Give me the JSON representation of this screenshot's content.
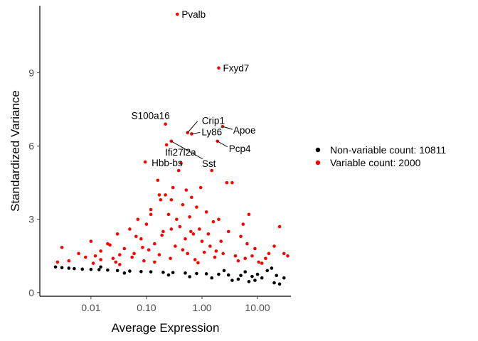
{
  "chart_data": {
    "type": "scatter",
    "xlabel": "Average Expression",
    "ylabel": "Standardized Variance",
    "x_scale": "log10",
    "xlim": [
      0.0012,
      40
    ],
    "ylim": [
      -0.15,
      11.75
    ],
    "x_ticks": [
      0.01,
      0.1,
      1,
      10
    ],
    "x_tick_labels": [
      "0.01",
      "0.10",
      "1.00",
      "10.00"
    ],
    "y_ticks": [
      0,
      3,
      6,
      9
    ],
    "y_tick_labels": [
      "0",
      "3",
      "6",
      "9"
    ],
    "grid": false,
    "legend_position": "right",
    "series": [
      {
        "name": "Non-variable count: 10811",
        "color": "#000000",
        "points": [
          [
            0.0023,
            1.05
          ],
          [
            0.003,
            1.02
          ],
          [
            0.004,
            1.0
          ],
          [
            0.005,
            0.98
          ],
          [
            0.007,
            0.96
          ],
          [
            0.01,
            0.95
          ],
          [
            0.014,
            0.94
          ],
          [
            0.02,
            0.92
          ],
          [
            0.03,
            0.9
          ],
          [
            0.05,
            0.88
          ],
          [
            0.08,
            0.86
          ],
          [
            0.12,
            0.85
          ],
          [
            0.2,
            0.83
          ],
          [
            0.3,
            0.82
          ],
          [
            0.5,
            0.8
          ],
          [
            0.8,
            0.78
          ],
          [
            1.2,
            0.77
          ],
          [
            2.0,
            0.75
          ],
          [
            3.0,
            0.72
          ],
          [
            5.0,
            0.7
          ],
          [
            8.0,
            0.66
          ],
          [
            12.0,
            0.6
          ],
          [
            15.0,
            0.9
          ],
          [
            18.0,
            1.0
          ],
          [
            20.0,
            0.4
          ],
          [
            25.0,
            0.35
          ],
          [
            30.0,
            0.6
          ],
          [
            3.5,
            0.5
          ],
          [
            4.5,
            0.55
          ],
          [
            7.0,
            0.45
          ],
          [
            1.5,
            0.6
          ],
          [
            0.6,
            0.65
          ],
          [
            10.0,
            0.75
          ],
          [
            2.5,
            0.9
          ],
          [
            0.25,
            0.72
          ],
          [
            0.04,
            0.8
          ],
          [
            0.015,
            1.05
          ],
          [
            6.0,
            0.85
          ],
          [
            9.0,
            0.5
          ],
          [
            22.0,
            0.7
          ]
        ]
      },
      {
        "name": "Variable count: 2000",
        "color": "#ff0000",
        "points": [
          [
            0.0025,
            1.25
          ],
          [
            0.003,
            1.85
          ],
          [
            0.004,
            1.3
          ],
          [
            0.006,
            1.6
          ],
          [
            0.008,
            1.45
          ],
          [
            0.01,
            2.1
          ],
          [
            0.012,
            1.5
          ],
          [
            0.015,
            1.7
          ],
          [
            0.02,
            2.0
          ],
          [
            0.025,
            1.4
          ],
          [
            0.03,
            2.4
          ],
          [
            0.04,
            1.8
          ],
          [
            0.05,
            2.6
          ],
          [
            0.06,
            1.6
          ],
          [
            0.07,
            3.0
          ],
          [
            0.08,
            2.2
          ],
          [
            0.1,
            2.8
          ],
          [
            0.12,
            3.4
          ],
          [
            0.14,
            2.0
          ],
          [
            0.16,
            4.6
          ],
          [
            0.18,
            3.8
          ],
          [
            0.2,
            2.5
          ],
          [
            0.22,
            4.0
          ],
          [
            0.25,
            3.2
          ],
          [
            0.28,
            2.6
          ],
          [
            0.3,
            4.3
          ],
          [
            0.35,
            3.0
          ],
          [
            0.4,
            2.7
          ],
          [
            0.45,
            3.6
          ],
          [
            0.5,
            2.2
          ],
          [
            0.6,
            3.1
          ],
          [
            0.7,
            2.4
          ],
          [
            0.8,
            3.5
          ],
          [
            0.9,
            2.6
          ],
          [
            1.0,
            2.1
          ],
          [
            1.2,
            3.3
          ],
          [
            1.4,
            1.9
          ],
          [
            1.6,
            2.9
          ],
          [
            1.8,
            1.7
          ],
          [
            2.0,
            3.0
          ],
          [
            2.4,
            1.6
          ],
          [
            3.0,
            2.5
          ],
          [
            3.5,
            4.5
          ],
          [
            4.0,
            1.5
          ],
          [
            5.0,
            2.3
          ],
          [
            6.0,
            1.4
          ],
          [
            7.0,
            3.2
          ],
          [
            9.0,
            1.8
          ],
          [
            12.0,
            1.2
          ],
          [
            14.0,
            1.4
          ],
          [
            16.0,
            1.6
          ],
          [
            20.0,
            1.9
          ],
          [
            25.0,
            2.7
          ],
          [
            30.0,
            1.6
          ],
          [
            35.0,
            1.5
          ],
          [
            0.011,
            1.2
          ],
          [
            0.033,
            1.15
          ],
          [
            0.09,
            1.3
          ],
          [
            0.27,
            1.4
          ],
          [
            0.75,
            1.35
          ],
          [
            0.033,
            1.55
          ],
          [
            0.11,
            1.75
          ],
          [
            0.33,
            1.9
          ],
          [
            1.1,
            1.65
          ],
          [
            0.015,
            1.35
          ],
          [
            0.055,
            1.45
          ],
          [
            0.17,
            1.55
          ],
          [
            0.55,
            1.6
          ],
          [
            1.7,
            1.45
          ],
          [
            2.2,
            2.1
          ],
          [
            0.022,
            1.95
          ],
          [
            0.065,
            2.3
          ],
          [
            0.19,
            2.35
          ],
          [
            0.63,
            2.5
          ],
          [
            0.085,
            1.85
          ],
          [
            0.45,
            1.75
          ],
          [
            1.3,
            2.4
          ],
          [
            0.028,
            1.25
          ],
          [
            0.14,
            1.25
          ],
          [
            0.85,
            1.22
          ],
          [
            4.5,
            1.3
          ],
          [
            8.0,
            1.5
          ],
          [
            10.5,
            1.25
          ],
          [
            6.5,
            2.0
          ],
          [
            0.38,
            5.0
          ],
          [
            0.95,
            4.3
          ],
          [
            0.17,
            4.0
          ],
          [
            0.52,
            4.2
          ],
          [
            0.42,
            5.3
          ],
          [
            1.5,
            5.0
          ],
          [
            0.28,
            3.8
          ],
          [
            0.65,
            3.9
          ],
          [
            0.12,
            3.2
          ],
          [
            2.8,
            4.5
          ],
          [
            5.5,
            2.8
          ]
        ]
      }
    ],
    "labeled_genes": [
      {
        "name": "Pvalb",
        "x": 0.36,
        "y": 11.4
      },
      {
        "name": "Fxyd7",
        "x": 2.0,
        "y": 9.2
      },
      {
        "name": "S100a16",
        "x": 0.22,
        "y": 6.9
      },
      {
        "name": "Crip1",
        "x": 0.55,
        "y": 6.55
      },
      {
        "name": "Apoe",
        "x": 2.35,
        "y": 6.8
      },
      {
        "name": "Ly86",
        "x": 0.65,
        "y": 6.5
      },
      {
        "name": "Pcp4",
        "x": 1.9,
        "y": 6.2
      },
      {
        "name": "Ifi27l2a",
        "x": 0.23,
        "y": 6.05
      },
      {
        "name": "Sst",
        "x": 0.28,
        "y": 6.2
      },
      {
        "name": "Hbb-bs",
        "x": 0.095,
        "y": 5.35
      }
    ]
  }
}
